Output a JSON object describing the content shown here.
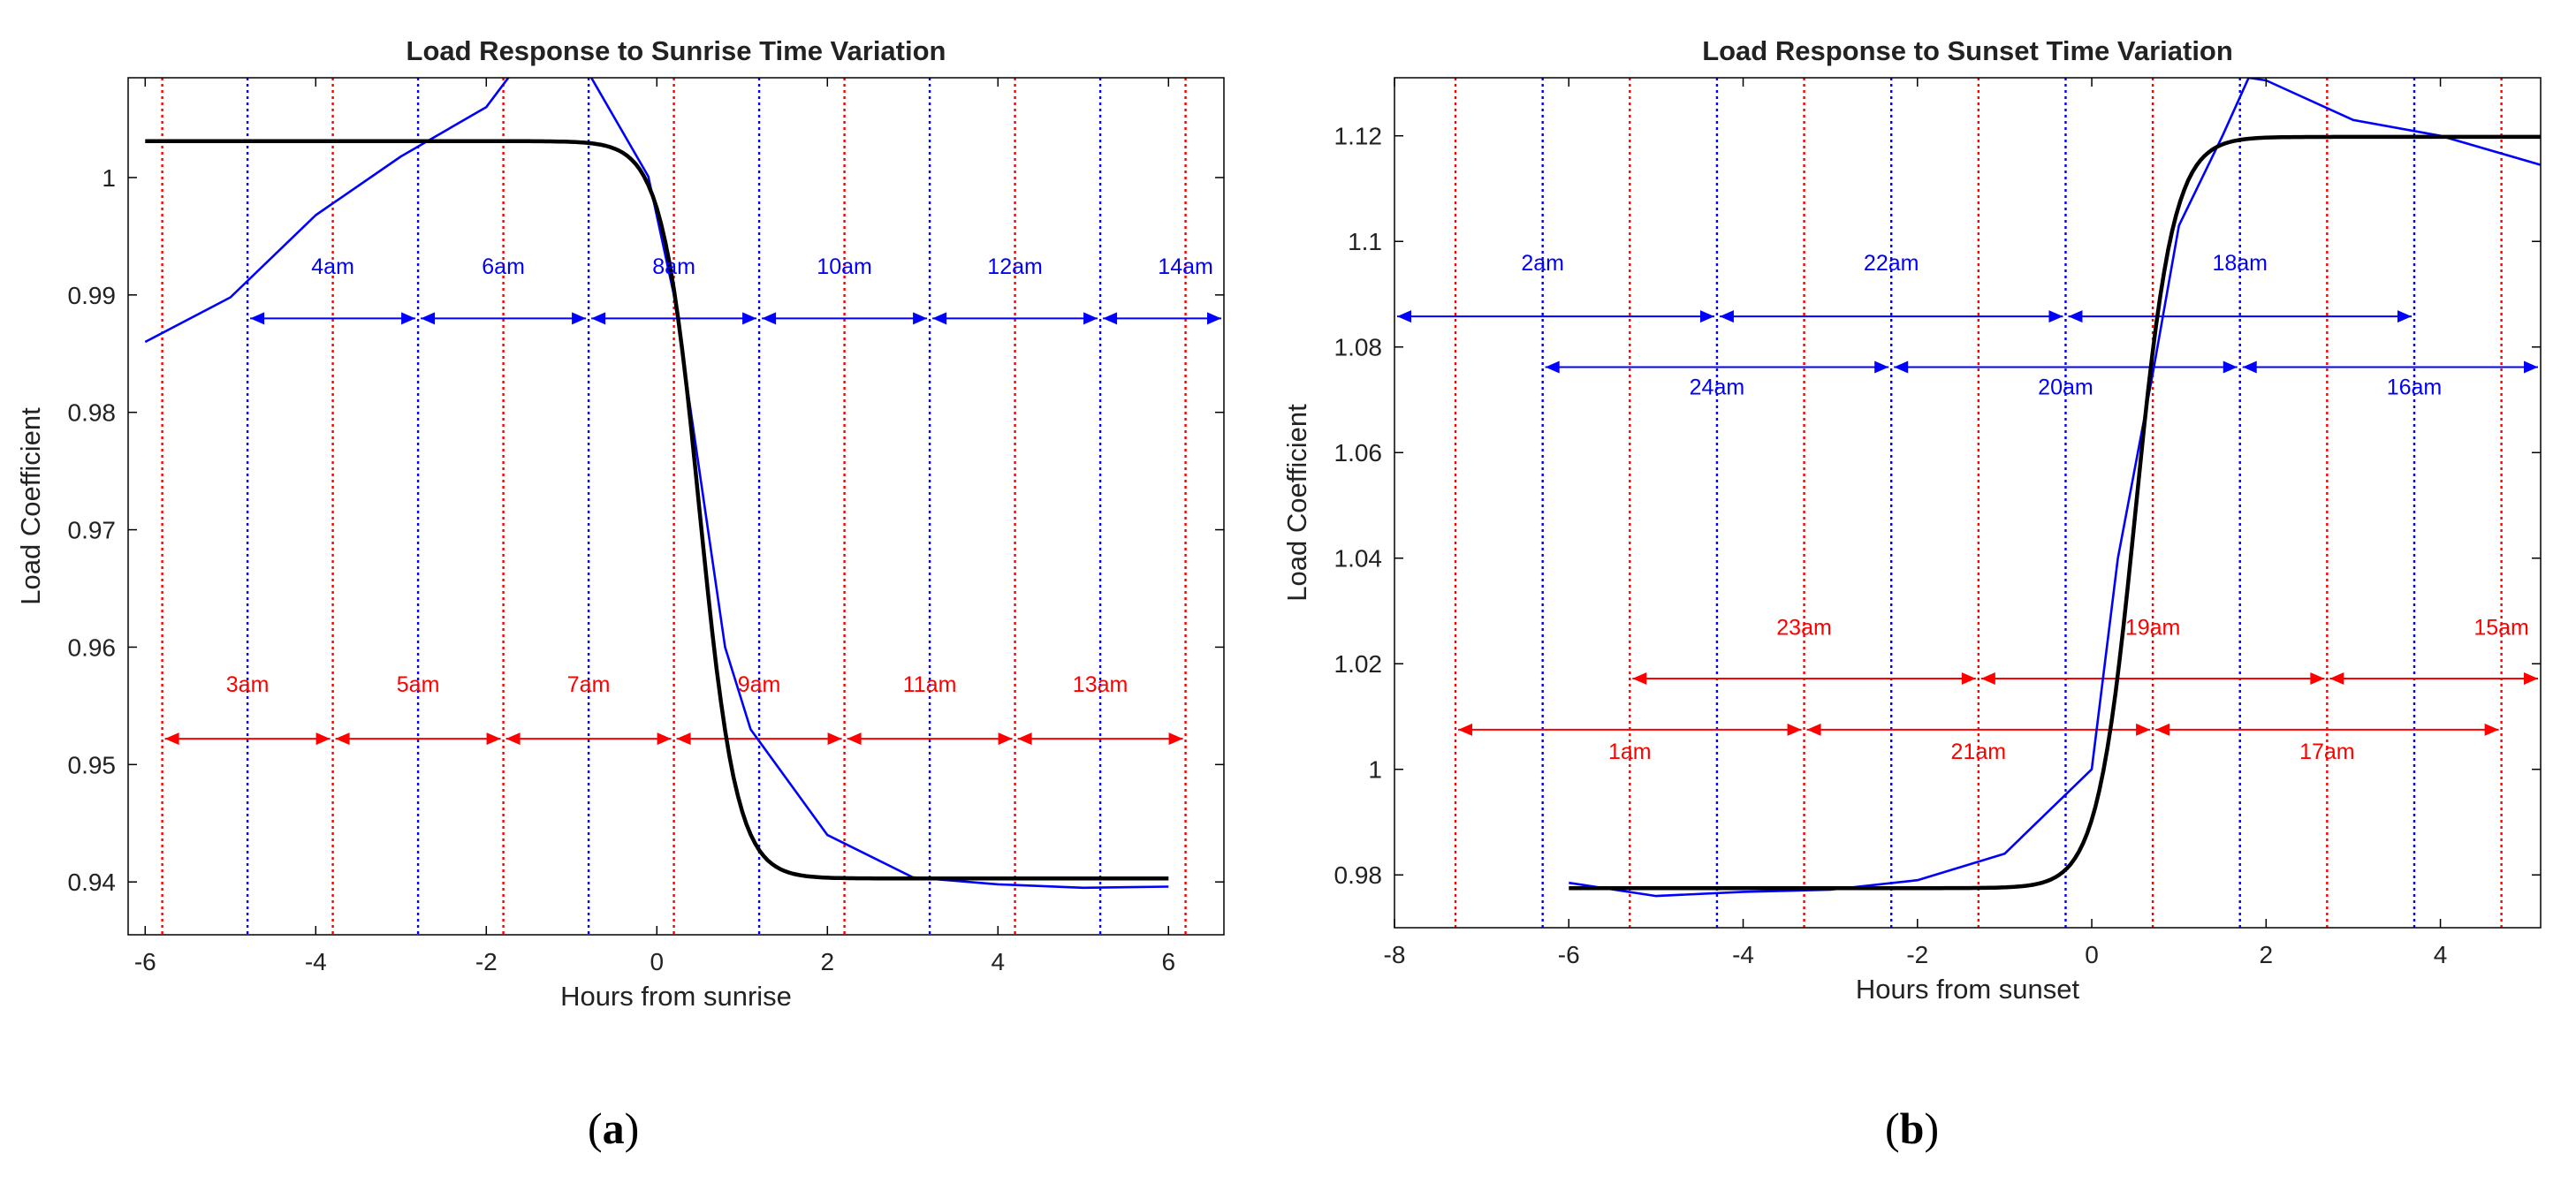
{
  "chart_data": [
    {
      "type": "line",
      "id": "a",
      "title": "Load Response to Sunrise Time Variation",
      "xlabel": "Hours from sunrise",
      "ylabel": "Load Coefficient",
      "xlim": [
        -6.2,
        6.65
      ],
      "ylim": [
        0.9355,
        1.0085
      ],
      "xticks": [
        -6,
        -4,
        -2,
        0,
        2,
        4,
        6
      ],
      "xtick_labels": [
        "-6",
        "-4",
        "-2",
        "0",
        "2",
        "4",
        "6"
      ],
      "yticks": [
        0.94,
        0.95,
        0.96,
        0.97,
        0.98,
        0.99,
        1.0
      ],
      "ytick_labels": [
        "0.94",
        "0.95",
        "0.96",
        "0.97",
        "0.98",
        "0.99",
        "1"
      ],
      "series": [
        {
          "name": "measured",
          "color": "#0000ff",
          "x": [
            -6,
            -5,
            -4,
            -3,
            -2,
            -1.7,
            -0.8,
            -0.1,
            0.2,
            0.5,
            0.8,
            1.1,
            2,
            3,
            4,
            5,
            6
          ],
          "y": [
            0.986,
            0.9898,
            0.9968,
            1.0018,
            1.006,
            1.0089,
            1.0089,
            1.0001,
            0.99,
            0.975,
            0.96,
            0.953,
            0.944,
            0.9404,
            0.9398,
            0.9395,
            0.9396
          ]
        },
        {
          "name": "fitted",
          "color": "#000000",
          "model": {
            "kind": "logistic",
            "lower": 0.9403,
            "upper": 1.0031,
            "center": 0.5,
            "k": -4.6,
            "from": -6,
            "to": 6
          }
        }
      ],
      "blue_vlines": [
        -4.8,
        -2.8,
        -0.8,
        1.2,
        3.2,
        5.2
      ],
      "red_vlines": [
        -5.8,
        -3.8,
        -1.8,
        0.2,
        2.2,
        4.2,
        6.2
      ],
      "blue_arrows": [
        {
          "y": 0.988,
          "bounds": [
            -4.8,
            -2.8,
            -0.8,
            1.2,
            3.2,
            5.2,
            6.65
          ]
        }
      ],
      "red_arrows": [
        {
          "y": 0.9522,
          "bounds": [
            -5.8,
            -3.8,
            -1.8,
            0.2,
            2.2,
            4.2,
            6.2
          ]
        }
      ],
      "blue_labels": [
        {
          "text": "4am",
          "x": -3.8,
          "y": 0.9918
        },
        {
          "text": "6am",
          "x": -1.8,
          "y": 0.9918
        },
        {
          "text": "8am",
          "x": 0.2,
          "y": 0.9918
        },
        {
          "text": "10am",
          "x": 2.2,
          "y": 0.9918
        },
        {
          "text": "12am",
          "x": 4.2,
          "y": 0.9918
        },
        {
          "text": "14am",
          "x": 6.2,
          "y": 0.9918
        }
      ],
      "red_labels": [
        {
          "text": "3am",
          "x": -4.8,
          "y": 0.9562
        },
        {
          "text": "5am",
          "x": -2.8,
          "y": 0.9562
        },
        {
          "text": "7am",
          "x": -0.8,
          "y": 0.9562
        },
        {
          "text": "9am",
          "x": 1.2,
          "y": 0.9562
        },
        {
          "text": "11am",
          "x": 3.2,
          "y": 0.9562
        },
        {
          "text": "13am",
          "x": 5.2,
          "y": 0.9562
        }
      ],
      "panel_label": "a"
    },
    {
      "type": "line",
      "id": "b",
      "title": "Load Response to Sunset Time Variation",
      "xlabel": "Hours from sunset",
      "ylabel": "Load Coefficient",
      "xlim": [
        -8,
        5.15
      ],
      "ylim": [
        0.97,
        1.131
      ],
      "xticks": [
        -8,
        -6,
        -4,
        -2,
        0,
        2,
        4
      ],
      "xtick_labels": [
        "-8",
        "-6",
        "-4",
        "-2",
        "0",
        "2",
        "4"
      ],
      "yticks": [
        0.98,
        1.0,
        1.02,
        1.04,
        1.06,
        1.08,
        1.1,
        1.12
      ],
      "ytick_labels": [
        "0.98",
        "1",
        "1.02",
        "1.04",
        "1.06",
        "1.08",
        "1.1",
        "1.12"
      ],
      "series": [
        {
          "name": "measured",
          "color": "#0000ff",
          "x": [
            -6,
            -5,
            -4,
            -3,
            -2,
            -1,
            0,
            0.3,
            0.7,
            1,
            1.5,
            1.8,
            2,
            3,
            4,
            5.15
          ],
          "y": [
            0.9785,
            0.976,
            0.9768,
            0.9772,
            0.979,
            0.984,
            1.0,
            1.04,
            1.075,
            1.103,
            1.12,
            1.131,
            1.1305,
            1.123,
            1.12,
            1.1145
          ]
        },
        {
          "name": "fitted",
          "color": "#000000",
          "model": {
            "kind": "logistic",
            "lower": 0.9775,
            "upper": 1.1198,
            "center": 0.5,
            "k": 4.6,
            "from": -6,
            "to": 5.15
          }
        }
      ],
      "blue_vlines": [
        -6.3,
        -4.3,
        -2.3,
        -0.3,
        1.7,
        3.7
      ],
      "red_vlines": [
        -7.3,
        -5.3,
        -3.3,
        -1.3,
        0.7,
        2.7,
        4.7
      ],
      "blue_arrows": [
        {
          "y": 1.0858,
          "bounds": [
            -8,
            -4.3,
            -0.3,
            3.7
          ]
        },
        {
          "y": 1.0762,
          "bounds": [
            -6.3,
            -2.3,
            1.7,
            5.15
          ]
        }
      ],
      "red_arrows": [
        {
          "y": 1.0172,
          "bounds": [
            -5.3,
            -1.3,
            2.7,
            5.15
          ]
        },
        {
          "y": 1.0075,
          "bounds": [
            -7.3,
            -3.3,
            0.7,
            4.7
          ]
        }
      ],
      "blue_labels": [
        {
          "text": "2am",
          "x": -6.3,
          "y": 1.0945
        },
        {
          "text": "22am",
          "x": -2.3,
          "y": 1.0945
        },
        {
          "text": "18am",
          "x": 1.7,
          "y": 1.0945
        },
        {
          "text": "24am",
          "x": -4.3,
          "y": 1.071
        },
        {
          "text": "20am",
          "x": -0.3,
          "y": 1.071
        },
        {
          "text": "16am",
          "x": 3.7,
          "y": 1.071
        }
      ],
      "red_labels": [
        {
          "text": "23am",
          "x": -3.3,
          "y": 1.0255
        },
        {
          "text": "19am",
          "x": 0.7,
          "y": 1.0255
        },
        {
          "text": "15am",
          "x": 4.7,
          "y": 1.0255
        },
        {
          "text": "1am",
          "x": -5.3,
          "y": 1.002
        },
        {
          "text": "21am",
          "x": -1.3,
          "y": 1.002
        },
        {
          "text": "17am",
          "x": 2.7,
          "y": 1.002
        }
      ],
      "panel_label": "b"
    }
  ],
  "colors": {
    "blue": "#0000ff",
    "red": "#ff0000",
    "fit": "#000000"
  }
}
